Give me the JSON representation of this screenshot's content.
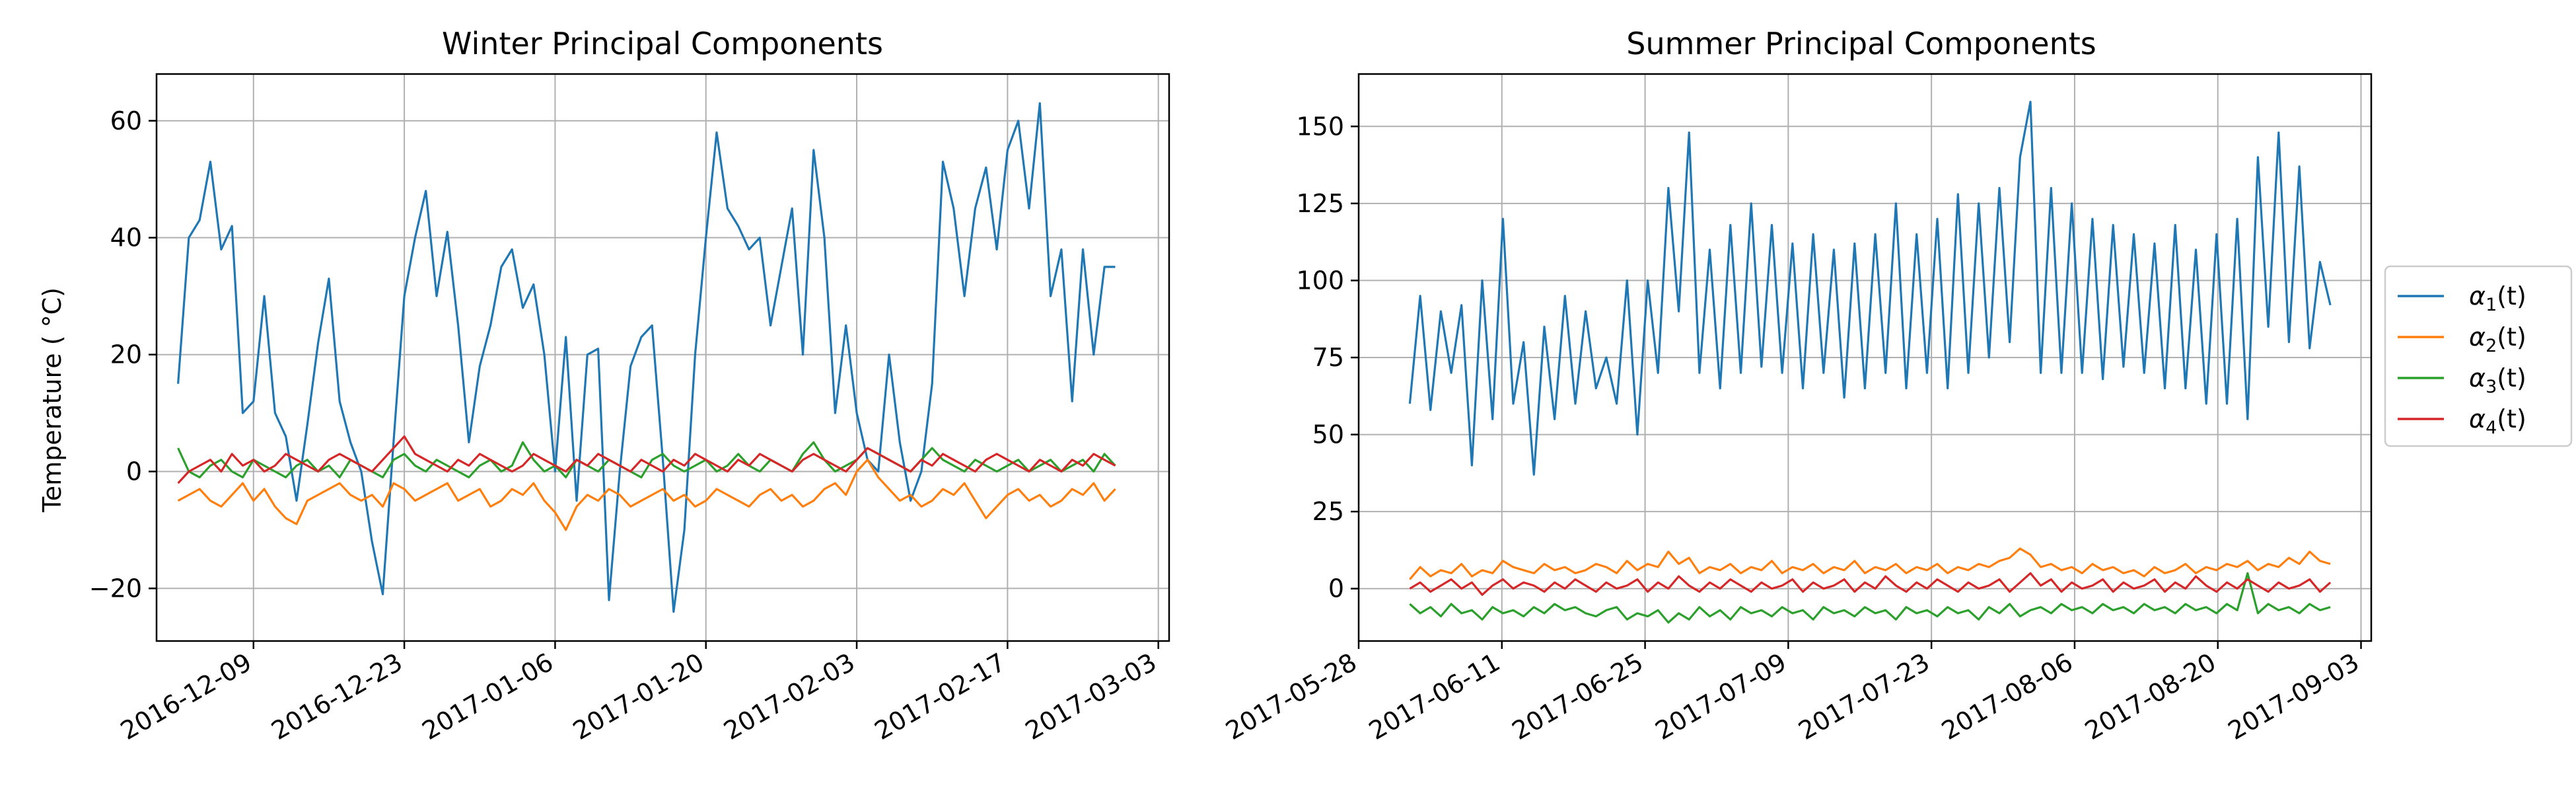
{
  "figure": {
    "y_unit_label": "Temperature ( °C)"
  },
  "chart_data": [
    {
      "type": "line",
      "title": "Winter Principal Components",
      "xlabel": "",
      "ylabel": "Temperature ( °C)",
      "x_range": [
        "2016-11-30",
        "2017-03-04"
      ],
      "data_start": "2016-12-02",
      "data_end": "2017-02-27",
      "ylim": [
        -29,
        68
      ],
      "xticks": [
        "2016-12-09",
        "2016-12-23",
        "2017-01-06",
        "2017-01-20",
        "2017-02-03",
        "2017-02-17",
        "2017-03-03"
      ],
      "yticks": [
        -20,
        0,
        20,
        40,
        60
      ],
      "grid": true,
      "series": [
        {
          "name": "α1(t)",
          "color": "#1f77b4",
          "values": [
            15,
            40,
            43,
            53,
            38,
            42,
            10,
            12,
            30,
            10,
            6,
            -5,
            8,
            22,
            33,
            12,
            5,
            0,
            -12,
            -21,
            5,
            30,
            40,
            48,
            30,
            41,
            25,
            5,
            18,
            25,
            35,
            38,
            28,
            32,
            20,
            0,
            23,
            -5,
            20,
            21,
            -22,
            0,
            18,
            23,
            25,
            2,
            -24,
            -10,
            20,
            40,
            58,
            45,
            42,
            38,
            40,
            25,
            35,
            45,
            20,
            55,
            40,
            10,
            25,
            10,
            2,
            0,
            20,
            5,
            -5,
            0,
            15,
            53,
            45,
            30,
            45,
            52,
            38,
            55,
            60,
            45,
            63,
            30,
            38,
            12,
            38,
            20,
            35,
            35
          ]
        },
        {
          "name": "α2(t)",
          "color": "#ff7f0e",
          "values": [
            -5,
            -4,
            -3,
            -5,
            -6,
            -4,
            -2,
            -5,
            -3,
            -6,
            -8,
            -9,
            -5,
            -4,
            -3,
            -2,
            -4,
            -5,
            -4,
            -6,
            -2,
            -3,
            -5,
            -4,
            -3,
            -2,
            -5,
            -4,
            -3,
            -6,
            -5,
            -3,
            -4,
            -2,
            -5,
            -7,
            -10,
            -6,
            -4,
            -5,
            -3,
            -4,
            -6,
            -5,
            -4,
            -3,
            -5,
            -4,
            -6,
            -5,
            -3,
            -4,
            -5,
            -6,
            -4,
            -3,
            -5,
            -4,
            -6,
            -5,
            -3,
            -2,
            -4,
            0,
            2,
            -1,
            -3,
            -5,
            -4,
            -6,
            -5,
            -3,
            -4,
            -2,
            -5,
            -8,
            -6,
            -4,
            -3,
            -5,
            -4,
            -6,
            -5,
            -3,
            -4,
            -2,
            -5,
            -3
          ]
        },
        {
          "name": "α3(t)",
          "color": "#2ca02c",
          "values": [
            4,
            0,
            -1,
            1,
            2,
            0,
            -1,
            2,
            1,
            0,
            -1,
            1,
            2,
            0,
            1,
            -1,
            2,
            1,
            0,
            -1,
            2,
            3,
            1,
            0,
            2,
            1,
            0,
            -1,
            1,
            2,
            0,
            1,
            5,
            2,
            0,
            1,
            -1,
            2,
            1,
            0,
            2,
            1,
            0,
            -1,
            2,
            3,
            1,
            0,
            1,
            2,
            0,
            1,
            3,
            1,
            0,
            2,
            1,
            0,
            3,
            5,
            2,
            0,
            1,
            2,
            4,
            3,
            2,
            1,
            0,
            2,
            4,
            2,
            1,
            0,
            2,
            1,
            0,
            1,
            2,
            0,
            1,
            2,
            0,
            1,
            2,
            0,
            3,
            1
          ]
        },
        {
          "name": "α4(t)",
          "color": "#d62728",
          "values": [
            -2,
            0,
            1,
            2,
            0,
            3,
            1,
            2,
            0,
            1,
            3,
            2,
            1,
            0,
            2,
            3,
            2,
            1,
            0,
            2,
            4,
            6,
            3,
            2,
            1,
            0,
            2,
            1,
            3,
            2,
            1,
            0,
            1,
            3,
            2,
            1,
            0,
            2,
            1,
            3,
            2,
            1,
            0,
            2,
            1,
            0,
            2,
            1,
            3,
            2,
            1,
            0,
            2,
            1,
            3,
            2,
            1,
            0,
            2,
            3,
            2,
            1,
            0,
            2,
            4,
            3,
            2,
            1,
            0,
            2,
            1,
            3,
            2,
            1,
            0,
            2,
            3,
            2,
            1,
            0,
            2,
            1,
            0,
            2,
            1,
            3,
            2,
            1
          ]
        }
      ]
    },
    {
      "type": "line",
      "title": "Summer Principal Components",
      "xlabel": "",
      "ylabel": "",
      "x_range": [
        "2017-05-28",
        "2017-09-04"
      ],
      "data_start": "2017-06-02",
      "data_end": "2017-08-31",
      "ylim": [
        -17,
        167
      ],
      "xticks": [
        "2017-05-28",
        "2017-06-11",
        "2017-06-25",
        "2017-07-09",
        "2017-07-23",
        "2017-08-06",
        "2017-08-20",
        "2017-09-03"
      ],
      "yticks": [
        0,
        25,
        50,
        75,
        100,
        125,
        150
      ],
      "grid": true,
      "series": [
        {
          "name": "α1(t)",
          "color": "#1f77b4",
          "values": [
            60,
            95,
            58,
            90,
            70,
            92,
            40,
            100,
            55,
            120,
            60,
            80,
            37,
            85,
            55,
            95,
            60,
            90,
            65,
            75,
            60,
            100,
            50,
            100,
            70,
            130,
            90,
            148,
            70,
            110,
            65,
            118,
            70,
            125,
            72,
            118,
            70,
            112,
            65,
            115,
            70,
            110,
            62,
            112,
            65,
            115,
            70,
            125,
            65,
            115,
            70,
            120,
            65,
            128,
            70,
            125,
            75,
            130,
            80,
            140,
            158,
            70,
            130,
            70,
            125,
            70,
            120,
            68,
            118,
            72,
            115,
            70,
            112,
            65,
            118,
            65,
            110,
            60,
            115,
            60,
            120,
            55,
            140,
            85,
            148,
            80,
            137,
            78,
            106,
            92
          ]
        },
        {
          "name": "α2(t)",
          "color": "#ff7f0e",
          "values": [
            3,
            7,
            4,
            6,
            5,
            8,
            4,
            6,
            5,
            9,
            7,
            6,
            5,
            8,
            6,
            7,
            5,
            6,
            8,
            7,
            5,
            9,
            6,
            8,
            7,
            12,
            8,
            10,
            5,
            7,
            6,
            8,
            5,
            7,
            6,
            9,
            5,
            7,
            6,
            8,
            5,
            7,
            6,
            9,
            5,
            7,
            6,
            8,
            5,
            7,
            6,
            8,
            5,
            7,
            6,
            8,
            7,
            9,
            10,
            13,
            11,
            7,
            8,
            6,
            7,
            5,
            8,
            6,
            7,
            5,
            6,
            4,
            7,
            5,
            6,
            8,
            5,
            7,
            6,
            8,
            7,
            9,
            6,
            8,
            7,
            10,
            8,
            12,
            9,
            8
          ]
        },
        {
          "name": "α3(t)",
          "color": "#2ca02c",
          "values": [
            -5,
            -8,
            -6,
            -9,
            -5,
            -8,
            -7,
            -10,
            -6,
            -8,
            -7,
            -9,
            -6,
            -8,
            -5,
            -7,
            -6,
            -8,
            -9,
            -7,
            -6,
            -10,
            -8,
            -9,
            -7,
            -11,
            -8,
            -10,
            -6,
            -9,
            -7,
            -10,
            -6,
            -8,
            -7,
            -9,
            -6,
            -8,
            -7,
            -10,
            -6,
            -8,
            -7,
            -9,
            -6,
            -8,
            -7,
            -10,
            -6,
            -8,
            -7,
            -9,
            -6,
            -8,
            -7,
            -10,
            -6,
            -8,
            -5,
            -9,
            -7,
            -6,
            -8,
            -5,
            -7,
            -6,
            -8,
            -5,
            -7,
            -6,
            -8,
            -5,
            -7,
            -6,
            -8,
            -5,
            -7,
            -6,
            -8,
            -5,
            -7,
            5,
            -8,
            -5,
            -7,
            -6,
            -8,
            -5,
            -7,
            -6
          ]
        },
        {
          "name": "α4(t)",
          "color": "#d62728",
          "values": [
            0,
            2,
            -1,
            1,
            3,
            0,
            2,
            -2,
            1,
            3,
            0,
            2,
            1,
            -1,
            2,
            0,
            3,
            1,
            -1,
            2,
            0,
            1,
            3,
            -1,
            2,
            0,
            4,
            1,
            -1,
            2,
            0,
            3,
            1,
            -1,
            2,
            0,
            1,
            3,
            -1,
            2,
            0,
            1,
            3,
            -1,
            2,
            0,
            4,
            1,
            -1,
            2,
            0,
            3,
            1,
            -1,
            2,
            0,
            1,
            3,
            -1,
            2,
            5,
            1,
            3,
            -1,
            2,
            0,
            1,
            3,
            -1,
            2,
            0,
            1,
            3,
            -1,
            2,
            0,
            4,
            1,
            -1,
            2,
            0,
            3,
            1,
            -1,
            2,
            0,
            1,
            3,
            -1,
            2
          ]
        }
      ]
    }
  ],
  "legend": {
    "placement": "right of second panel",
    "entries": [
      {
        "greek": "α",
        "sub": "1",
        "suffix": "(t)",
        "color": "#1f77b4"
      },
      {
        "greek": "α",
        "sub": "2",
        "suffix": "(t)",
        "color": "#ff7f0e"
      },
      {
        "greek": "α",
        "sub": "3",
        "suffix": "(t)",
        "color": "#2ca02c"
      },
      {
        "greek": "α",
        "sub": "4",
        "suffix": "(t)",
        "color": "#d62728"
      }
    ]
  }
}
